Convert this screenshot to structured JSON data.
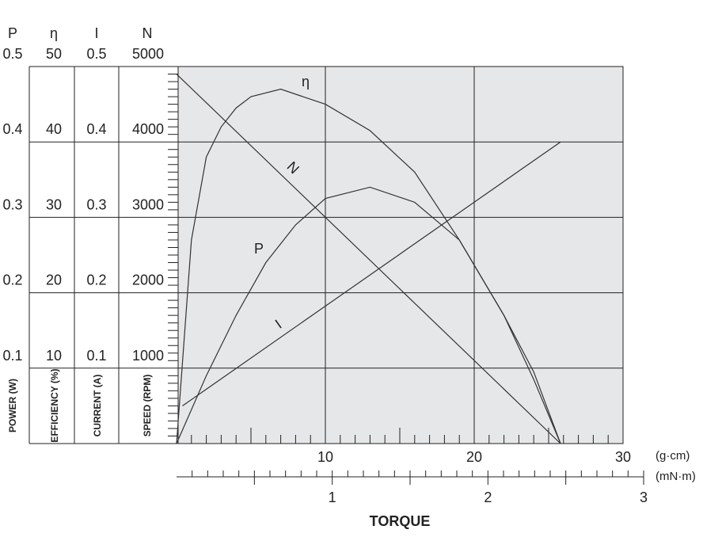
{
  "chart_data": {
    "type": "line",
    "xlabel": "TORQUE",
    "x_axes": [
      {
        "label": "(g·cm)",
        "xlim": [
          0,
          30
        ],
        "xticks": [
          10,
          20,
          30
        ]
      },
      {
        "label": "(mN·m)",
        "xlim": [
          0,
          3
        ],
        "xticks": [
          1,
          2,
          3
        ]
      }
    ],
    "y_axes": [
      {
        "symbol": "P",
        "label": "POWER (W)",
        "ylim": [
          0,
          0.5
        ],
        "yticks": [
          0.1,
          0.2,
          0.3,
          0.4,
          0.5
        ]
      },
      {
        "symbol": "η",
        "label": "EFFICIENCY (%)",
        "ylim": [
          0,
          50
        ],
        "yticks": [
          10,
          20,
          30,
          40,
          50
        ]
      },
      {
        "symbol": "I",
        "label": "CURRENT (A)",
        "ylim": [
          0,
          0.5
        ],
        "yticks": [
          0.1,
          0.2,
          0.3,
          0.4,
          0.5
        ]
      },
      {
        "symbol": "N",
        "label": "SPEED (RPM)",
        "ylim": [
          0,
          5000
        ],
        "yticks": [
          1000,
          2000,
          3000,
          4000,
          5000
        ]
      }
    ],
    "series": [
      {
        "name": "P",
        "color": "#333333",
        "x": [
          0,
          2,
          4,
          6,
          8,
          10,
          13,
          16,
          19,
          22,
          24,
          25.8
        ],
        "values": [
          0,
          0.09,
          0.17,
          0.24,
          0.29,
          0.325,
          0.34,
          0.32,
          0.27,
          0.17,
          0.085,
          0
        ]
      },
      {
        "name": "η",
        "color": "#333333",
        "x": [
          0,
          1,
          2,
          3,
          4,
          5,
          7,
          10,
          13,
          16,
          19,
          22,
          24,
          25.8
        ],
        "values": [
          0,
          27,
          38,
          42,
          44.5,
          46,
          47,
          45,
          41.5,
          36,
          27,
          17,
          9.5,
          0
        ]
      },
      {
        "name": "I",
        "color": "#333333",
        "x": [
          0.4,
          25.8
        ],
        "values": [
          0.05,
          0.4
        ]
      },
      {
        "name": "N",
        "color": "#333333",
        "x": [
          0,
          25.8
        ],
        "values": [
          4900,
          0
        ]
      }
    ]
  }
}
